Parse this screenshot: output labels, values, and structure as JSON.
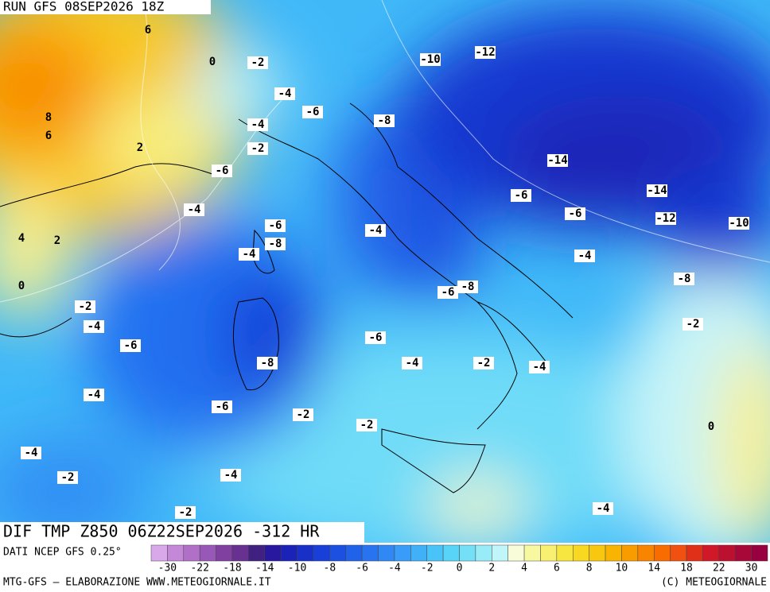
{
  "header": {
    "run": "RUN GFS 08SEP2026 18Z"
  },
  "map": {
    "contour_labels": [
      6,
      0,
      -2,
      -10,
      -12,
      -4,
      -6,
      -8,
      8,
      6,
      2,
      -4,
      -2,
      -6,
      -14,
      -14,
      -6,
      -4,
      -6,
      -6,
      -12,
      -10,
      4,
      2,
      -4,
      -8,
      -4,
      -4,
      -8,
      0,
      -6,
      -8,
      -2,
      -4,
      -2,
      -6,
      -6,
      -8,
      -4,
      -2,
      -4,
      -4,
      -6,
      -2,
      -2,
      0,
      -4,
      -2,
      -4,
      -4,
      -2
    ]
  },
  "footer": {
    "product": "DIF TMP Z850 06Z22SEP2026 -312 HR",
    "source": "DATI NCEP GFS 0.25°",
    "credit": "MTG-GFS – ELABORAZIONE WWW.METEOGIORNALE.IT",
    "copyright": "(C) METEOGIORNALE"
  },
  "colorbar": {
    "ticks": [
      -30,
      -22,
      -18,
      -14,
      -10,
      -8,
      -6,
      -4,
      -2,
      0,
      2,
      4,
      6,
      8,
      10,
      14,
      18,
      22,
      30
    ],
    "colors": [
      "#d8a8e8",
      "#c488d8",
      "#b070c8",
      "#9858b8",
      "#8040a0",
      "#683090",
      "#402080",
      "#2818a0",
      "#1a22b8",
      "#1830c8",
      "#1840d8",
      "#1c50e0",
      "#2062e8",
      "#2874f0",
      "#3088f4",
      "#389cf8",
      "#40b0f8",
      "#48c4f8",
      "#58d4f8",
      "#74e0f8",
      "#98ecf8",
      "#c0f6fa",
      "#f8fcd8",
      "#f8f8a0",
      "#f8f070",
      "#f8e640",
      "#f8d820",
      "#f8c810",
      "#f8b400",
      "#f89c00",
      "#f88400",
      "#f86c00",
      "#f05010",
      "#e03018",
      "#d01828",
      "#bc1030",
      "#a80838",
      "#980040"
    ]
  }
}
